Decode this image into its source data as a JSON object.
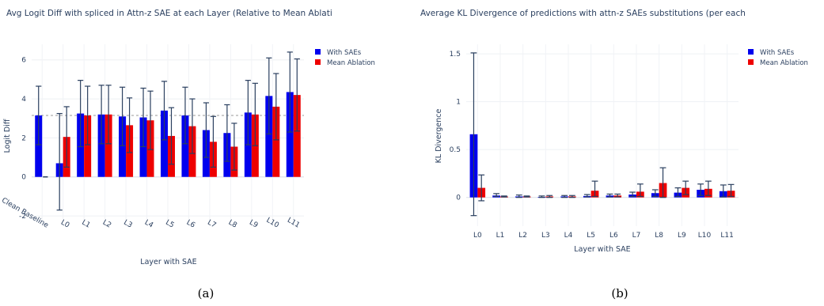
{
  "colors": {
    "with_saes": "#0000ee",
    "mean_ablation": "#ee0000",
    "error_bar": "#2a3f5f",
    "baseline": "#999999"
  },
  "chart_data": [
    {
      "type": "bar",
      "title": "Avg Logit Diff with spliced in Attn-z SAE at each Layer (Relative to Mean Ablati",
      "xlabel": "Layer with SAE",
      "ylabel": "Logit Diff",
      "ylim": [
        -2.2,
        6.8
      ],
      "yticks": [
        -2,
        0,
        2,
        4,
        6
      ],
      "grid": true,
      "legend_position": "top-right",
      "baseline_value": 3.15,
      "categories": [
        "Clean Baseline",
        "L0",
        "L1",
        "L2",
        "L3",
        "L4",
        "L5",
        "L6",
        "L7",
        "L8",
        "L9",
        "L10",
        "L11"
      ],
      "series": [
        {
          "name": "With SAEs",
          "values": [
            3.15,
            0.7,
            3.25,
            3.2,
            3.1,
            3.05,
            3.4,
            3.15,
            2.4,
            2.25,
            3.3,
            4.15,
            4.35
          ],
          "err_low": [
            1.5,
            2.4,
            1.7,
            1.5,
            1.5,
            1.5,
            1.5,
            1.45,
            1.4,
            1.45,
            1.65,
            1.95,
            2.05
          ],
          "err_high": [
            1.5,
            2.55,
            1.7,
            1.5,
            1.5,
            1.5,
            1.5,
            1.45,
            1.4,
            1.45,
            1.65,
            1.95,
            2.05
          ]
        },
        {
          "name": "Mean Ablation",
          "values": [
            0.0,
            2.05,
            3.15,
            3.2,
            2.65,
            2.9,
            2.1,
            2.6,
            1.8,
            1.55,
            3.2,
            3.6,
            4.2
          ],
          "err_low": [
            0.0,
            1.55,
            1.5,
            1.5,
            1.4,
            1.5,
            1.45,
            1.4,
            1.3,
            1.2,
            1.6,
            1.7,
            1.85
          ],
          "err_high": [
            0.0,
            1.55,
            1.5,
            1.5,
            1.4,
            1.5,
            1.45,
            1.4,
            1.3,
            1.2,
            1.6,
            1.7,
            1.85
          ]
        }
      ],
      "caption": "(a)"
    },
    {
      "type": "bar",
      "title": "Average KL Divergence of predictions with attn-z SAEs substitutions (per each",
      "xlabel": "Layer with SAE",
      "ylabel": "KL Divergence",
      "ylim": [
        -0.3,
        1.6
      ],
      "yticks": [
        0,
        0.5,
        1,
        1.5
      ],
      "grid": true,
      "legend_position": "top-right",
      "categories": [
        "L0",
        "L1",
        "L2",
        "L3",
        "L4",
        "L5",
        "L6",
        "L7",
        "L8",
        "L9",
        "L10",
        "L11"
      ],
      "series": [
        {
          "name": "With SAEs",
          "values": [
            0.66,
            0.02,
            0.01,
            0.005,
            0.01,
            0.015,
            0.02,
            0.03,
            0.045,
            0.05,
            0.08,
            0.065
          ],
          "err_low": [
            0.85,
            0.01,
            0.01,
            0.005,
            0.01,
            0.01,
            0.015,
            0.02,
            0.035,
            0.04,
            0.06,
            0.06
          ],
          "err_high": [
            0.85,
            0.02,
            0.015,
            0.01,
            0.01,
            0.015,
            0.015,
            0.025,
            0.035,
            0.05,
            0.06,
            0.065
          ]
        },
        {
          "name": "Mean Ablation",
          "values": [
            0.1,
            0.01,
            0.01,
            0.01,
            0.01,
            0.07,
            0.02,
            0.06,
            0.15,
            0.1,
            0.09,
            0.07
          ],
          "err_low": [
            0.135,
            0.005,
            0.005,
            0.01,
            0.01,
            0.06,
            0.015,
            0.05,
            0.15,
            0.07,
            0.07,
            0.06
          ],
          "err_high": [
            0.135,
            0.005,
            0.005,
            0.01,
            0.01,
            0.1,
            0.015,
            0.08,
            0.16,
            0.07,
            0.08,
            0.065
          ]
        }
      ],
      "caption": "(b)"
    }
  ]
}
